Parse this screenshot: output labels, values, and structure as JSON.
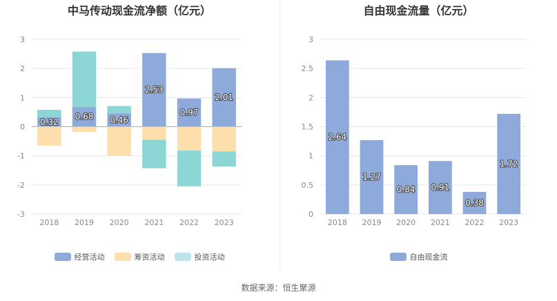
{
  "source": "数据来源：恒生聚源",
  "chart_data": [
    {
      "type": "bar",
      "stacked": true,
      "title": "中马传动现金流净额（亿元）",
      "categories": [
        "2018",
        "2019",
        "2020",
        "2021",
        "2022",
        "2023"
      ],
      "ylim": [
        -3,
        3
      ],
      "yticks": [
        "3",
        "2",
        "1",
        "0",
        "-1",
        "-2",
        "-3"
      ],
      "grid": true,
      "legend_position": "bottom",
      "series": [
        {
          "name": "经营活动",
          "color": "#8eaadb",
          "values": [
            0.32,
            0.68,
            0.46,
            2.53,
            0.97,
            2.01
          ]
        },
        {
          "name": "筹资活动",
          "color": "#fddfae",
          "values": [
            -0.65,
            -0.18,
            -1.0,
            -0.45,
            -0.82,
            -0.85
          ]
        },
        {
          "name": "投资活动",
          "color": "#8dd6d6",
          "values": [
            0.26,
            1.9,
            0.25,
            -0.98,
            -1.23,
            -0.52
          ]
        }
      ],
      "data_labels": [
        "0.32",
        "0.68",
        "0.46",
        "2.53",
        "0.97",
        "2.01"
      ]
    },
    {
      "type": "bar",
      "title": "自由现金流量（亿元）",
      "categories": [
        "2018",
        "2019",
        "2020",
        "2021",
        "2022",
        "2023"
      ],
      "ylim": [
        0,
        3
      ],
      "yticks": [
        "3",
        "2.5",
        "2",
        "1.5",
        "1",
        "0.5",
        "0"
      ],
      "grid": true,
      "legend_position": "bottom",
      "series": [
        {
          "name": "自由现金流",
          "color": "#8eaadb",
          "values": [
            2.64,
            1.27,
            0.84,
            0.91,
            0.38,
            1.72
          ]
        }
      ],
      "data_labels": [
        "2.64",
        "1.27",
        "0.84",
        "0.91",
        "0.38",
        "1.72"
      ]
    }
  ]
}
